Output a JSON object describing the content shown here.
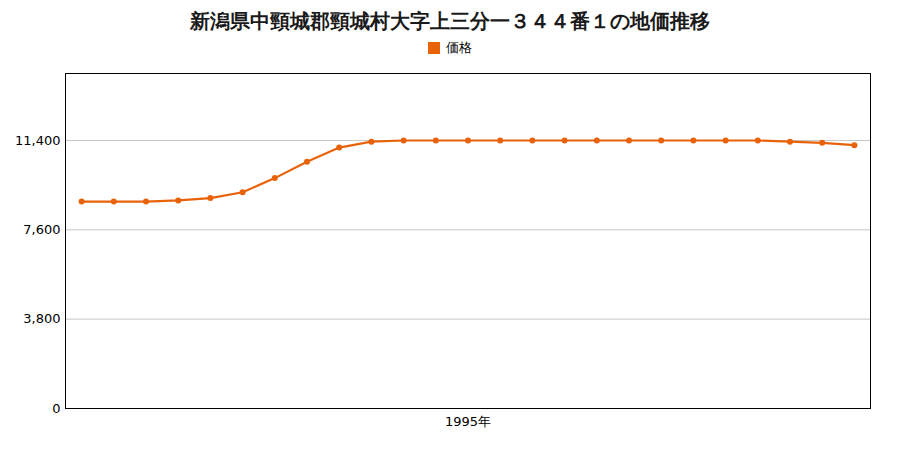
{
  "chart_data": {
    "type": "line",
    "title": "新潟県中頸城郡頸城村大字上三分一３４４番１の地価推移",
    "x": [
      1983,
      1984,
      1985,
      1986,
      1987,
      1988,
      1989,
      1990,
      1991,
      1992,
      1993,
      1994,
      1995,
      1996,
      1997,
      1998,
      1999,
      2000,
      2001,
      2002,
      2003,
      2004,
      2005,
      2006,
      2007
    ],
    "series": [
      {
        "name": "価格",
        "color": "#e8620a",
        "values": [
          8800,
          8800,
          8800,
          8850,
          8950,
          9200,
          9800,
          10500,
          11100,
          11350,
          11400,
          11400,
          11400,
          11400,
          11400,
          11400,
          11400,
          11400,
          11400,
          11400,
          11400,
          11400,
          11350,
          11300,
          11200
        ]
      }
    ],
    "xlim": [
      1982.5,
      2007.5
    ],
    "xticks": [
      {
        "value": 1995,
        "label": "1995年"
      }
    ],
    "ylim": [
      0,
      14250
    ],
    "yticks": [
      0,
      {
        "value": 3800,
        "label": "3,800"
      },
      {
        "value": 7600,
        "label": "7,600"
      },
      {
        "value": 11400,
        "label": "11,400"
      }
    ],
    "grid": true,
    "legend": "top",
    "marker": "circle"
  }
}
